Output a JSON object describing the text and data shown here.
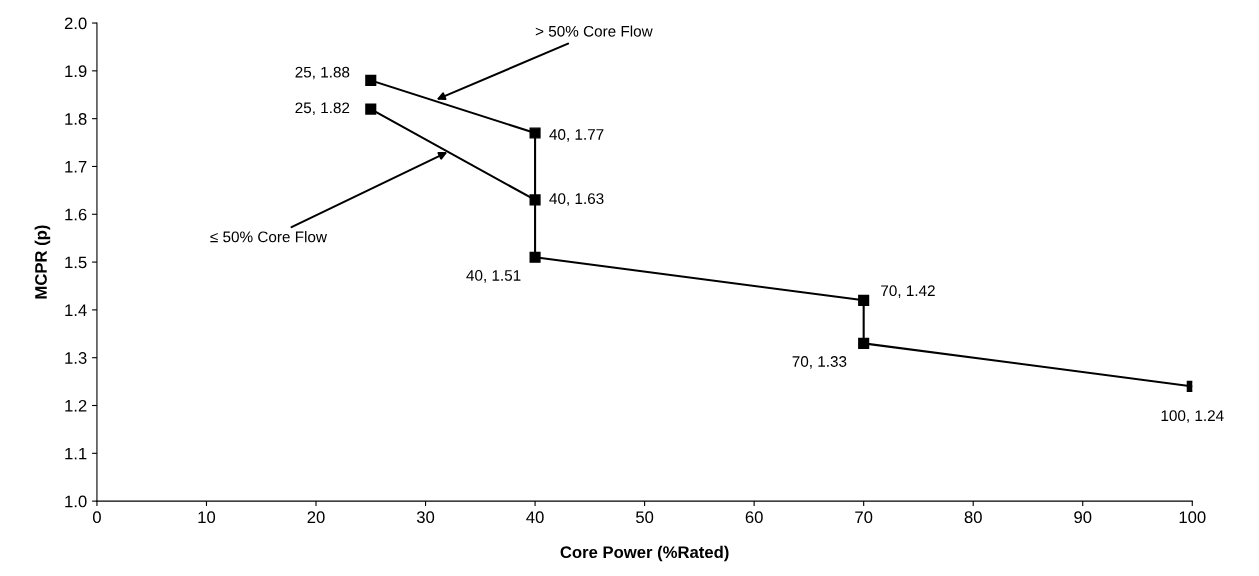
{
  "chart_data": {
    "type": "line",
    "xlabel": "Core Power (%Rated)",
    "ylabel": "MCPR (p)",
    "series": [
      {
        "color": "#000000",
        "x": [
          25,
          40,
          40,
          70,
          70,
          100
        ],
        "values": [
          1.88,
          1.77,
          1.51,
          1.42,
          1.33,
          1.24
        ],
        "value_labels": [
          "25, 1.88",
          "40, 1.77",
          "40, 1.51",
          "70, 1.42",
          "70, 1.33",
          "100, 1.24"
        ]
      },
      {
        "color": "#000000",
        "x": [
          25,
          40
        ],
        "values": [
          1.82,
          1.63
        ],
        "value_labels": [
          "25, 1.82",
          "40, 1.63"
        ]
      }
    ],
    "annotations": [
      {
        "text": "> 50% Core Flow",
        "x": 31,
        "y": 1.84
      },
      {
        "text": "≤ 50% Core Flow",
        "x": 32,
        "y": 1.73
      }
    ],
    "xlim": [
      0,
      100
    ],
    "xticks": [
      0,
      10,
      20,
      30,
      40,
      50,
      60,
      70,
      80,
      90,
      100
    ],
    "ylim": [
      1.0,
      2.0
    ],
    "yticks": [
      {
        "value": 1,
        "label": "1.0"
      },
      1.1,
      1.2,
      1.3,
      1.4,
      1.5,
      1.6,
      1.7,
      1.8,
      1.9,
      {
        "value": 2,
        "label": "2.0"
      }
    ],
    "grid": false,
    "legend": false,
    "marker": "square",
    "line_style": "solid"
  }
}
